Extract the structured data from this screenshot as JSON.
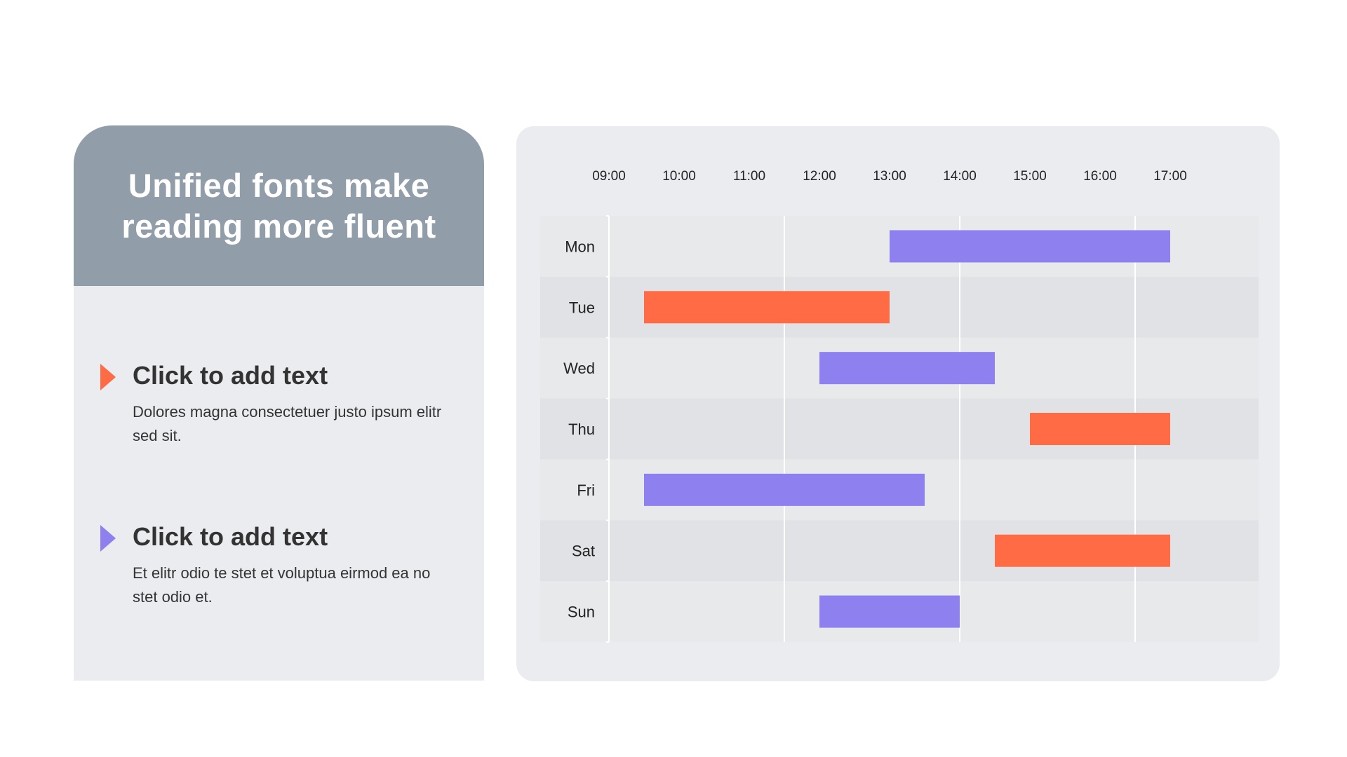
{
  "left_panel": {
    "title": "Unified fonts make reading more fluent",
    "items": [
      {
        "heading": "Click to add text",
        "body": "Dolores magna consectetuer justo ipsum elitr sed sit.",
        "arrow_color": "#ff6b45"
      },
      {
        "heading": "Click to add text",
        "body": "Et elitr odio te stet et voluptua eirmod ea no stet odio et.",
        "arrow_color": "#8e80ef"
      }
    ]
  },
  "colors": {
    "header_bg": "#929daa",
    "panel_bg": "#ebecef",
    "orange": "#ff6b45",
    "purple": "#8e80ef"
  },
  "chart_data": {
    "type": "gantt",
    "x_ticks": [
      "09:00",
      "10:00",
      "11:00",
      "12:00",
      "13:00",
      "14:00",
      "15:00",
      "16:00",
      "17:00"
    ],
    "xlim": [
      "09:00",
      "18:15"
    ],
    "categories": [
      "Mon",
      "Tue",
      "Wed",
      "Thu",
      "Fri",
      "Sat",
      "Sun"
    ],
    "tasks": [
      {
        "day": "Mon",
        "start": "13:00",
        "end": "17:00",
        "color": "#8e80ef"
      },
      {
        "day": "Tue",
        "start": "09:30",
        "end": "13:00",
        "color": "#ff6b45"
      },
      {
        "day": "Wed",
        "start": "12:00",
        "end": "14:30",
        "color": "#8e80ef"
      },
      {
        "day": "Thu",
        "start": "15:00",
        "end": "17:00",
        "color": "#ff6b45"
      },
      {
        "day": "Fri",
        "start": "09:30",
        "end": "13:30",
        "color": "#8e80ef"
      },
      {
        "day": "Sat",
        "start": "14:30",
        "end": "17:00",
        "color": "#ff6b45"
      },
      {
        "day": "Sun",
        "start": "12:00",
        "end": "14:00",
        "color": "#8e80ef"
      }
    ],
    "gridlines": [
      "11:30",
      "14:00",
      "16:30"
    ],
    "grid": true,
    "legend": "none"
  }
}
